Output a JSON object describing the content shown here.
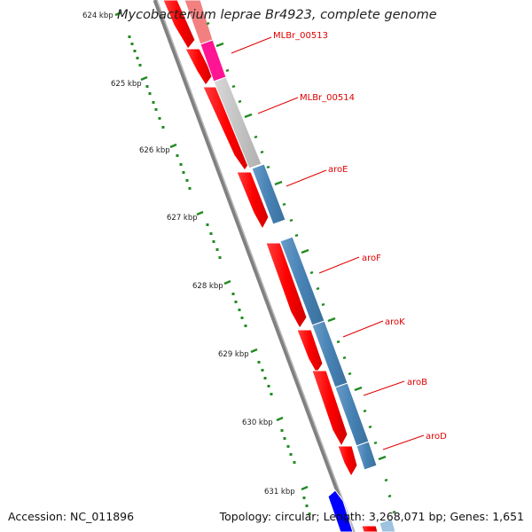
{
  "title": "Mycobacterium leprae Br4923, complete genome",
  "footer": {
    "accession": "Accession: NC_011896",
    "summary": "Topology: circular; Length: 3,268,071 bp; Genes: 1,651"
  },
  "ruler": {
    "labels": [
      "624 kbp",
      "625 kbp",
      "626 kbp",
      "627 kbp",
      "628 kbp",
      "629 kbp",
      "630 kbp",
      "631 kbp"
    ]
  },
  "genes": [
    {
      "name": "MLBr_00513",
      "color": "#ff1493"
    },
    {
      "name": "MLBr_00514",
      "color": "#c0c0c0"
    },
    {
      "name": "aroE",
      "color": "#4682b4"
    },
    {
      "name": "aroF",
      "color": "#4682b4"
    },
    {
      "name": "aroK",
      "color": "#4682b4"
    },
    {
      "name": "aroB",
      "color": "#4682b4"
    },
    {
      "name": "aroD",
      "color": "#4682b4"
    }
  ],
  "colors": {
    "cds_forward": "#ff0000",
    "backbone": "#808080",
    "ticks": "#228b22",
    "label_lines": "#e00000",
    "blue_feature": "#0000ff"
  }
}
